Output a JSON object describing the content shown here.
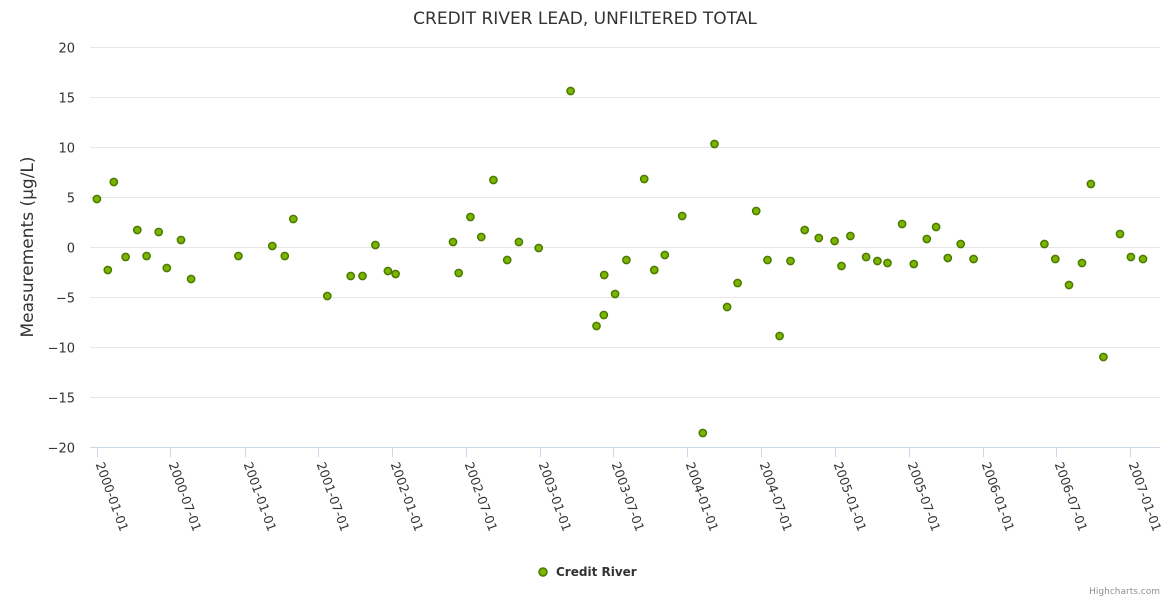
{
  "chart_data": {
    "type": "scatter",
    "title": "CREDIT RIVER LEAD, UNFILTERED TOTAL",
    "ylabel": "Measurements (µg/L)",
    "xlabel": "",
    "ylim": [
      -20,
      20
    ],
    "yticks": [
      "20",
      "15",
      "10",
      "5",
      "0",
      "−5",
      "−10",
      "−15",
      "−20"
    ],
    "yvalues": [
      20,
      15,
      10,
      5,
      0,
      -5,
      -10,
      -15,
      -20
    ],
    "xticks": [
      "2000-01-01",
      "2000-07-01",
      "2001-01-01",
      "2001-07-01",
      "2002-01-01",
      "2002-07-01",
      "2003-01-01",
      "2003-07-01",
      "2004-01-01",
      "2004-07-01",
      "2005-01-01",
      "2005-07-01",
      "2006-01-01",
      "2006-07-01",
      "2007-01-01"
    ],
    "xlim": [
      "1999-12-15",
      "2007-03-15"
    ],
    "grid": true,
    "legend": "bottom-center",
    "series": [
      {
        "name": "Credit River",
        "color": "#7cb500",
        "border": "#4a7a00",
        "points": [
          {
            "x": "2000-01-01",
            "y": 4.8
          },
          {
            "x": "2000-01-28",
            "y": -2.3
          },
          {
            "x": "2000-02-12",
            "y": 6.5
          },
          {
            "x": "2000-03-12",
            "y": -1.0
          },
          {
            "x": "2000-04-10",
            "y": 1.7
          },
          {
            "x": "2000-05-03",
            "y": -0.9
          },
          {
            "x": "2000-06-02",
            "y": 1.5
          },
          {
            "x": "2000-06-22",
            "y": -2.1
          },
          {
            "x": "2000-07-27",
            "y": 0.7
          },
          {
            "x": "2000-08-21",
            "y": -3.2
          },
          {
            "x": "2000-12-16",
            "y": -0.9
          },
          {
            "x": "2001-03-10",
            "y": 0.1
          },
          {
            "x": "2001-04-10",
            "y": -0.9
          },
          {
            "x": "2001-05-01",
            "y": 2.8
          },
          {
            "x": "2001-07-24",
            "y": -4.9
          },
          {
            "x": "2001-09-20",
            "y": -2.9
          },
          {
            "x": "2001-10-19",
            "y": -2.9
          },
          {
            "x": "2001-11-20",
            "y": 0.2
          },
          {
            "x": "2001-12-21",
            "y": -2.4
          },
          {
            "x": "2002-01-09",
            "y": -2.7
          },
          {
            "x": "2002-05-31",
            "y": 0.5
          },
          {
            "x": "2002-06-14",
            "y": -2.6
          },
          {
            "x": "2002-07-13",
            "y": 3.0
          },
          {
            "x": "2002-08-09",
            "y": 1.0
          },
          {
            "x": "2002-09-08",
            "y": 6.7
          },
          {
            "x": "2002-10-12",
            "y": -1.3
          },
          {
            "x": "2002-11-10",
            "y": 0.5
          },
          {
            "x": "2002-12-29",
            "y": -0.1
          },
          {
            "x": "2003-03-18",
            "y": 15.6
          },
          {
            "x": "2003-05-21",
            "y": -7.9
          },
          {
            "x": "2003-06-08",
            "y": -6.8
          },
          {
            "x": "2003-06-09",
            "y": -2.8
          },
          {
            "x": "2003-07-06",
            "y": -4.7
          },
          {
            "x": "2003-08-03",
            "y": -1.3
          },
          {
            "x": "2003-09-16",
            "y": 6.8
          },
          {
            "x": "2003-10-11",
            "y": -2.3
          },
          {
            "x": "2003-11-06",
            "y": -0.8
          },
          {
            "x": "2003-12-19",
            "y": 3.1
          },
          {
            "x": "2004-02-08",
            "y": -18.6
          },
          {
            "x": "2004-03-08",
            "y": 10.3
          },
          {
            "x": "2004-04-08",
            "y": -6.0
          },
          {
            "x": "2004-05-04",
            "y": -3.6
          },
          {
            "x": "2004-06-19",
            "y": 3.6
          },
          {
            "x": "2004-07-17",
            "y": -1.3
          },
          {
            "x": "2004-08-16",
            "y": -8.9
          },
          {
            "x": "2004-09-12",
            "y": -1.4
          },
          {
            "x": "2004-10-17",
            "y": 1.7
          },
          {
            "x": "2004-11-21",
            "y": 0.9
          },
          {
            "x": "2004-12-30",
            "y": 0.6
          },
          {
            "x": "2005-01-16",
            "y": -1.9
          },
          {
            "x": "2005-02-07",
            "y": 1.1
          },
          {
            "x": "2005-03-18",
            "y": -1.0
          },
          {
            "x": "2005-04-15",
            "y": -1.4
          },
          {
            "x": "2005-05-10",
            "y": -1.6
          },
          {
            "x": "2005-06-15",
            "y": 2.3
          },
          {
            "x": "2005-07-14",
            "y": -1.7
          },
          {
            "x": "2005-08-15",
            "y": 0.8
          },
          {
            "x": "2005-09-07",
            "y": 2.0
          },
          {
            "x": "2005-10-06",
            "y": -1.1
          },
          {
            "x": "2005-11-07",
            "y": 0.3
          },
          {
            "x": "2005-12-09",
            "y": -1.2
          },
          {
            "x": "2006-06-02",
            "y": 0.3
          },
          {
            "x": "2006-06-29",
            "y": -1.2
          },
          {
            "x": "2006-08-02",
            "y": -3.8
          },
          {
            "x": "2006-09-03",
            "y": -1.6
          },
          {
            "x": "2006-09-25",
            "y": 6.3
          },
          {
            "x": "2006-10-26",
            "y": -11.0
          },
          {
            "x": "2006-12-06",
            "y": 1.3
          },
          {
            "x": "2007-01-02",
            "y": -1.0
          },
          {
            "x": "2007-02-01",
            "y": -1.2
          }
        ]
      }
    ]
  },
  "credits": "Highcharts.com"
}
